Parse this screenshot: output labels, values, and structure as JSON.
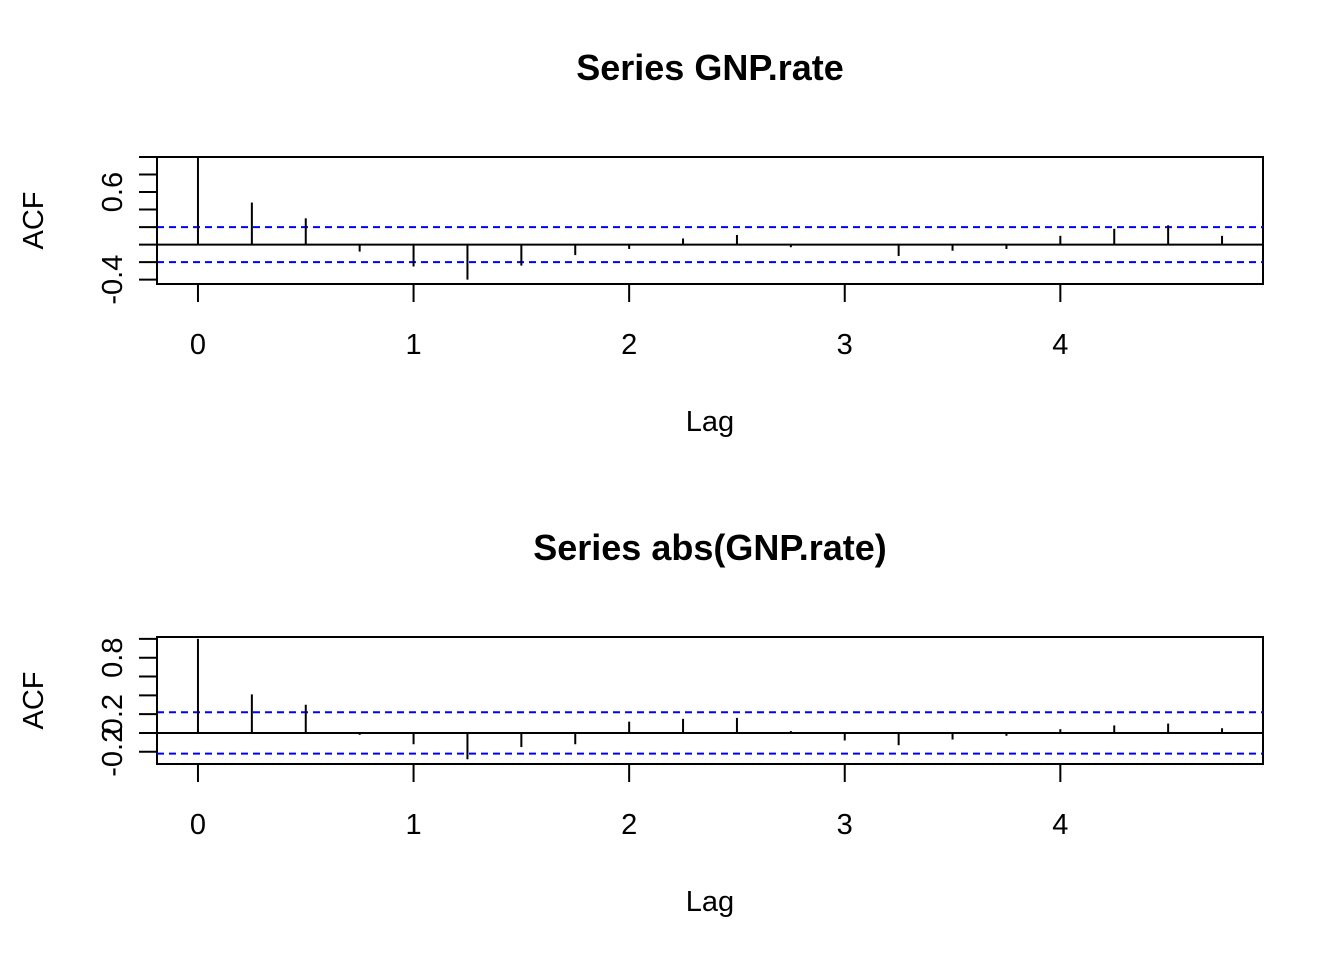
{
  "chart_data": [
    {
      "type": "acf",
      "title": "Series  GNP.rate",
      "xlabel": "Lag",
      "ylabel": "ACF",
      "xlim": [
        -0.19,
        4.94
      ],
      "ylim": [
        -0.45,
        1.0
      ],
      "x_ticks": [
        0,
        1,
        2,
        3,
        4
      ],
      "x_tick_labels": [
        "0",
        "1",
        "2",
        "3",
        "4"
      ],
      "y_ticks": [
        -0.4,
        -0.2,
        0.0,
        0.2,
        0.4,
        0.6,
        0.8,
        1.0
      ],
      "y_tick_labels": [
        "-0.4",
        "",
        "",
        "",
        "",
        "0.6",
        "",
        ""
      ],
      "ci": 0.2,
      "lags": [
        0,
        0.25,
        0.5,
        0.75,
        1,
        1.25,
        1.5,
        1.75,
        2,
        2.25,
        2.5,
        2.75,
        3,
        3.25,
        3.5,
        3.75,
        4,
        4.25,
        4.5,
        4.75
      ],
      "values": [
        1.0,
        0.48,
        0.3,
        -0.08,
        -0.25,
        -0.4,
        -0.24,
        -0.12,
        -0.05,
        0.07,
        0.11,
        -0.03,
        0.0,
        -0.13,
        -0.07,
        -0.05,
        0.1,
        0.18,
        0.22,
        0.1
      ],
      "grid": false,
      "colors": {
        "bars": "#000000",
        "ci": "#0000ff"
      }
    },
    {
      "type": "acf",
      "title": "Series  abs(GNP.rate)",
      "xlabel": "Lag",
      "ylabel": "ACF",
      "xlim": [
        -0.19,
        4.94
      ],
      "ylim": [
        -0.33,
        1.02
      ],
      "x_ticks": [
        0,
        1,
        2,
        3,
        4
      ],
      "x_tick_labels": [
        "0",
        "1",
        "2",
        "3",
        "4"
      ],
      "y_ticks": [
        -0.2,
        0.0,
        0.2,
        0.4,
        0.6,
        0.8,
        1.0
      ],
      "y_tick_labels": [
        "-0.2",
        "",
        "0.2",
        "",
        "",
        "0.8",
        ""
      ],
      "ci": 0.22,
      "lags": [
        0,
        0.25,
        0.5,
        0.75,
        1,
        1.25,
        1.5,
        1.75,
        2,
        2.25,
        2.5,
        2.75,
        3,
        3.25,
        3.5,
        3.75,
        4,
        4.25,
        4.5,
        4.75
      ],
      "values": [
        1.0,
        0.41,
        0.3,
        -0.02,
        -0.12,
        -0.28,
        -0.15,
        -0.12,
        0.12,
        0.15,
        0.16,
        0.02,
        -0.08,
        -0.13,
        -0.07,
        -0.03,
        0.04,
        0.08,
        0.1,
        0.05
      ],
      "grid": false,
      "colors": {
        "bars": "#000000",
        "ci": "#0000ff"
      }
    }
  ]
}
